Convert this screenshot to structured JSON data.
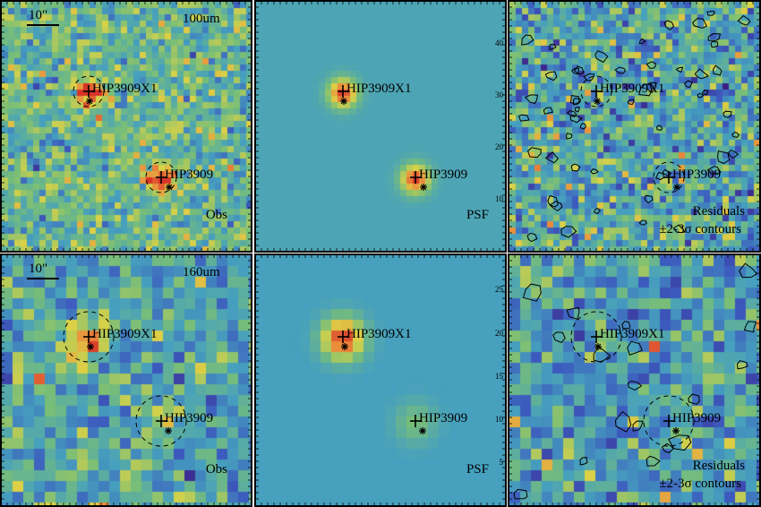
{
  "figure": {
    "rows": [
      {
        "band": "100um",
        "panels": [
          {
            "id": "obs",
            "label": "Obs",
            "band_label": "100um",
            "scale_label": "10\"",
            "style": "obs",
            "sources": [
              {
                "name": "HIP3909X1"
              },
              {
                "name": "HIP3909"
              }
            ]
          },
          {
            "id": "psf",
            "label": "PSF",
            "style": "psf",
            "sources": [
              {
                "name": "HIP3909X1"
              },
              {
                "name": "HIP3909"
              }
            ]
          },
          {
            "id": "res",
            "label": "Residuals",
            "label2": "±2-3σ contours",
            "style": "res",
            "sources": [
              {
                "name": "HIP3909X1"
              },
              {
                "name": "HIP3909"
              }
            ]
          }
        ]
      },
      {
        "band": "160um",
        "panels": [
          {
            "id": "obs",
            "label": "Obs",
            "band_label": "160um",
            "scale_label": "10\"",
            "style": "obs",
            "sources": [
              {
                "name": "HIP3909X1"
              },
              {
                "name": "HIP3909"
              }
            ]
          },
          {
            "id": "psf",
            "label": "PSF",
            "style": "psf",
            "sources": [
              {
                "name": "HIP3909X1"
              },
              {
                "name": "HIP3909"
              }
            ]
          },
          {
            "id": "res",
            "label": "Residuals",
            "label2": "±2-3σ contours",
            "style": "res",
            "sources": [
              {
                "name": "HIP3909X1"
              },
              {
                "name": "HIP3909"
              }
            ]
          }
        ]
      }
    ],
    "axis_ticks": {
      "row1_psf_y": [
        "10",
        "20",
        "30",
        "40"
      ],
      "row2_psf_y": [
        "5",
        "10",
        "15",
        "20",
        "25"
      ]
    },
    "colors": {
      "low": "#3b2a8f",
      "mid": "#3fa0b0",
      "high": "#e8d23a",
      "peak": "#d8402a"
    }
  }
}
